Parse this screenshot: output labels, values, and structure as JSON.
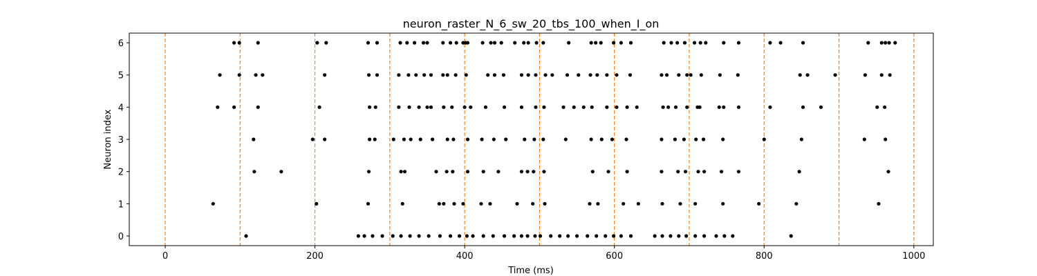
{
  "chart_data": {
    "type": "scatter",
    "title": "neuron_raster_N_6_sw_20_tbs_100_when_I_on",
    "xlabel": "Time (ms)",
    "ylabel": "Neuron index",
    "xlim": [
      -48,
      1026
    ],
    "ylim": [
      -0.3,
      6.3
    ],
    "xticks": [
      0,
      200,
      400,
      600,
      800,
      1000
    ],
    "yticks": [
      0,
      1,
      2,
      3,
      4,
      5,
      6
    ],
    "grid": false,
    "marker_color": "#000000",
    "stimulus_times": [
      0,
      100,
      200,
      300,
      400,
      500,
      600,
      700,
      800,
      900,
      1000
    ],
    "stimulus_line_color": "#ff7f0e",
    "series": [
      {
        "neuron": 0,
        "spikes": [
          108,
          258,
          266,
          277,
          290,
          304,
          315,
          327,
          339,
          352,
          367,
          381,
          393,
          403,
          411,
          425,
          438,
          453,
          466,
          476,
          484,
          494,
          501,
          515,
          527,
          538,
          550,
          564,
          576,
          588,
          599,
          609,
          622,
          654,
          664,
          675,
          686,
          696,
          708,
          720,
          736,
          747,
          758,
          836
        ]
      },
      {
        "neuron": 1,
        "spikes": [
          64,
          202,
          271,
          317,
          366,
          372,
          386,
          398,
          422,
          434,
          470,
          491,
          507,
          567,
          578,
          612,
          632,
          664,
          688,
          708,
          745,
          793,
          843,
          953
        ]
      },
      {
        "neuron": 2,
        "spikes": [
          119,
          155,
          272,
          315,
          320,
          362,
          376,
          384,
          404,
          425,
          445,
          476,
          484,
          492,
          506,
          571,
          592,
          617,
          663,
          685,
          695,
          712,
          720,
          743,
          766,
          847,
          966
        ]
      },
      {
        "neuron": 3,
        "spikes": [
          118,
          197,
          213,
          273,
          280,
          305,
          319,
          328,
          341,
          357,
          377,
          385,
          404,
          423,
          439,
          455,
          480,
          493,
          505,
          535,
          569,
          583,
          597,
          616,
          663,
          681,
          693,
          709,
          719,
          745,
          800,
          850,
          934,
          962
        ]
      },
      {
        "neuron": 4,
        "spikes": [
          70,
          92,
          124,
          206,
          273,
          281,
          312,
          326,
          339,
          350,
          355,
          372,
          383,
          400,
          408,
          428,
          453,
          476,
          495,
          506,
          532,
          546,
          559,
          570,
          590,
          603,
          617,
          630,
          665,
          672,
          682,
          697,
          711,
          714,
          740,
          746,
          766,
          808,
          852,
          876,
          951,
          961
        ]
      },
      {
        "neuron": 5,
        "spikes": [
          73,
          99,
          121,
          130,
          213,
          272,
          283,
          312,
          325,
          335,
          346,
          355,
          371,
          377,
          388,
          402,
          431,
          440,
          452,
          476,
          485,
          495,
          508,
          517,
          537,
          552,
          568,
          577,
          590,
          603,
          621,
          663,
          670,
          686,
          697,
          702,
          716,
          741,
          765,
          848,
          858,
          895,
          935,
          957,
          968
        ]
      },
      {
        "neuron": 6,
        "spikes": [
          92,
          99,
          124,
          203,
          215,
          271,
          283,
          314,
          323,
          333,
          345,
          350,
          371,
          381,
          389,
          398,
          401,
          404,
          424,
          435,
          440,
          449,
          467,
          479,
          485,
          496,
          505,
          539,
          569,
          575,
          582,
          599,
          609,
          622,
          666,
          676,
          684,
          694,
          707,
          715,
          722,
          746,
          766,
          808,
          822,
          852,
          939,
          957,
          962,
          967,
          975
        ]
      }
    ]
  }
}
